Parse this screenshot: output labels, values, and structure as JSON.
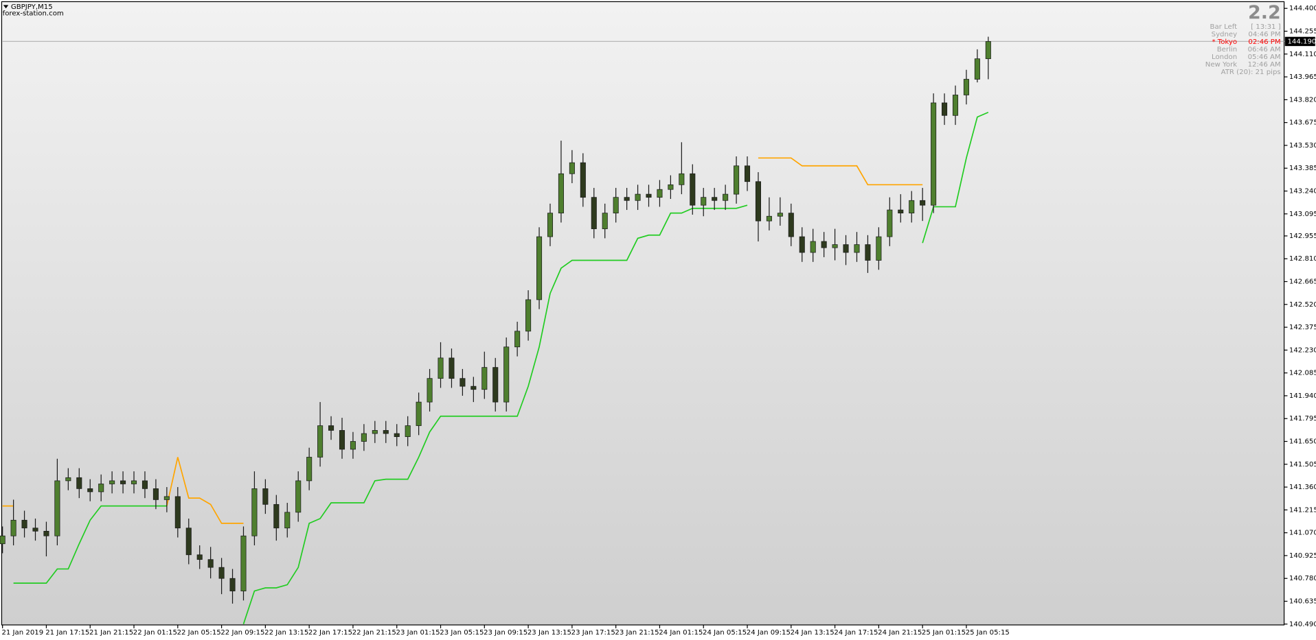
{
  "chart_data": {
    "type": "candlestick",
    "symbol": "GBPJPY,M15",
    "source": "forex-station.com",
    "up_color": "#4f7f2f",
    "down_color": "#2e3a1e",
    "wick_color": "#1a1a1a",
    "ylim": [
      140.49,
      144.4
    ],
    "xlim": [
      0,
      117
    ],
    "yticks": [
      {
        "value": 144.4,
        "label": "144.400"
      },
      {
        "value": 144.255,
        "label": "144.255"
      },
      {
        "value": 144.11,
        "label": "144.110"
      },
      {
        "value": 143.965,
        "label": "143.965"
      },
      {
        "value": 143.82,
        "label": "143.820"
      },
      {
        "value": 143.675,
        "label": "143.675"
      },
      {
        "value": 143.53,
        "label": "143.530"
      },
      {
        "value": 143.385,
        "label": "143.385"
      },
      {
        "value": 143.24,
        "label": "143.240"
      },
      {
        "value": 143.095,
        "label": "143.095"
      },
      {
        "value": 142.955,
        "label": "142.955"
      },
      {
        "value": 142.81,
        "label": "142.810"
      },
      {
        "value": 142.665,
        "label": "142.665"
      },
      {
        "value": 142.52,
        "label": "142.520"
      },
      {
        "value": 142.375,
        "label": "142.375"
      },
      {
        "value": 142.23,
        "label": "142.230"
      },
      {
        "value": 142.085,
        "label": "142.085"
      },
      {
        "value": 141.94,
        "label": "141.940"
      },
      {
        "value": 141.795,
        "label": "141.795"
      },
      {
        "value": 141.65,
        "label": "141.650"
      },
      {
        "value": 141.505,
        "label": "141.505"
      },
      {
        "value": 141.36,
        "label": "141.360"
      },
      {
        "value": 141.215,
        "label": "141.215"
      },
      {
        "value": 141.07,
        "label": "141.070"
      },
      {
        "value": 140.925,
        "label": "140.925"
      },
      {
        "value": 140.78,
        "label": "140.780"
      },
      {
        "value": 140.635,
        "label": "140.635"
      },
      {
        "value": 140.49,
        "label": "140.490"
      }
    ],
    "xticks": [
      {
        "value": 0,
        "label": "21 Jan 2019"
      },
      {
        "value": 4,
        "label": "21 Jan 17:15"
      },
      {
        "value": 8,
        "label": "21 Jan 21:15"
      },
      {
        "value": 12,
        "label": "22 Jan 01:15"
      },
      {
        "value": 16,
        "label": "22 Jan 05:15"
      },
      {
        "value": 20,
        "label": "22 Jan 09:15"
      },
      {
        "value": 24,
        "label": "22 Jan 13:15"
      },
      {
        "value": 28,
        "label": "22 Jan 17:15"
      },
      {
        "value": 32,
        "label": "22 Jan 21:15"
      },
      {
        "value": 36,
        "label": "23 Jan 01:15"
      },
      {
        "value": 40,
        "label": "23 Jan 05:15"
      },
      {
        "value": 44,
        "label": "23 Jan 09:15"
      },
      {
        "value": 48,
        "label": "23 Jan 13:15"
      },
      {
        "value": 52,
        "label": "23 Jan 17:15"
      },
      {
        "value": 56,
        "label": "23 Jan 21:15"
      },
      {
        "value": 60,
        "label": "24 Jan 01:15"
      },
      {
        "value": 64,
        "label": "24 Jan 05:15"
      },
      {
        "value": 68,
        "label": "24 Jan 09:15"
      },
      {
        "value": 72,
        "label": "24 Jan 13:15"
      },
      {
        "value": 76,
        "label": "24 Jan 17:15"
      },
      {
        "value": 80,
        "label": "24 Jan 21:15"
      },
      {
        "value": 84,
        "label": "25 Jan 01:15"
      },
      {
        "value": 88,
        "label": "25 Jan 05:15"
      }
    ],
    "current_price": {
      "value": 144.19,
      "label": "144.190"
    },
    "open": [
      141.0,
      141.05,
      141.15,
      141.1,
      141.08,
      141.05,
      141.4,
      141.42,
      141.35,
      141.33,
      141.38,
      141.4,
      141.38,
      141.4,
      141.35,
      141.28,
      141.3,
      141.1,
      140.93,
      140.9,
      140.85,
      140.78,
      140.7,
      141.05,
      141.35,
      141.25,
      141.1,
      141.2,
      141.4,
      141.55,
      141.75,
      141.72,
      141.6,
      141.65,
      141.7,
      141.72,
      141.7,
      141.68,
      141.75,
      141.9,
      142.05,
      142.18,
      142.05,
      142.0,
      141.98,
      142.12,
      141.9,
      142.25,
      142.35,
      142.55,
      142.95,
      143.1,
      143.35,
      143.42,
      143.2,
      143.0,
      143.1,
      143.2,
      143.18,
      143.22,
      143.2,
      143.25,
      143.28,
      143.35,
      143.15,
      143.2,
      143.18,
      143.22,
      143.4,
      143.3,
      143.05,
      143.08,
      143.1,
      142.95,
      142.85,
      142.92,
      142.88,
      142.9,
      142.85,
      142.9,
      142.8,
      142.95,
      143.12,
      143.1,
      143.18,
      143.15,
      143.8,
      143.72,
      143.85,
      143.95,
      144.08
    ],
    "high": [
      141.11,
      141.28,
      141.21,
      141.16,
      141.14,
      141.54,
      141.48,
      141.48,
      141.41,
      141.44,
      141.46,
      141.46,
      141.46,
      141.46,
      141.41,
      141.36,
      141.36,
      141.16,
      140.99,
      140.98,
      140.91,
      140.84,
      141.11,
      141.46,
      141.41,
      141.31,
      141.26,
      141.46,
      141.61,
      141.9,
      141.81,
      141.8,
      141.71,
      141.76,
      141.78,
      141.78,
      141.76,
      141.81,
      141.96,
      142.11,
      142.28,
      142.24,
      142.11,
      142.06,
      142.22,
      142.18,
      142.31,
      142.41,
      142.61,
      143.01,
      143.16,
      143.56,
      143.5,
      143.48,
      143.26,
      143.16,
      143.26,
      143.26,
      143.28,
      143.28,
      143.31,
      143.34,
      143.55,
      143.41,
      143.26,
      143.26,
      143.28,
      143.46,
      143.46,
      143.36,
      143.2,
      143.2,
      143.16,
      143.01,
      143.0,
      142.98,
      143.0,
      142.96,
      142.98,
      142.96,
      143.01,
      143.2,
      143.22,
      143.24,
      143.26,
      143.86,
      143.86,
      143.91,
      144.01,
      144.14,
      144.22
    ],
    "low": [
      140.94,
      140.99,
      141.04,
      141.02,
      140.92,
      140.99,
      141.34,
      141.29,
      141.27,
      141.27,
      141.32,
      141.32,
      141.32,
      141.29,
      141.22,
      141.2,
      141.04,
      140.87,
      140.84,
      140.78,
      140.68,
      140.62,
      140.64,
      140.99,
      141.19,
      141.02,
      141.04,
      141.14,
      141.34,
      141.49,
      141.66,
      141.54,
      141.54,
      141.59,
      141.64,
      141.64,
      141.62,
      141.62,
      141.69,
      141.84,
      141.99,
      141.99,
      141.94,
      141.9,
      141.92,
      141.84,
      141.84,
      142.19,
      142.29,
      142.49,
      142.89,
      143.04,
      143.29,
      143.14,
      142.94,
      142.94,
      143.04,
      143.12,
      143.12,
      143.14,
      143.14,
      143.19,
      143.22,
      143.09,
      143.08,
      143.12,
      143.12,
      143.16,
      143.24,
      142.92,
      142.99,
      143.02,
      142.89,
      142.79,
      142.79,
      142.82,
      142.8,
      142.77,
      142.79,
      142.72,
      142.74,
      142.89,
      143.04,
      143.04,
      143.05,
      143.1,
      143.66,
      143.66,
      143.79,
      143.93,
      143.95
    ],
    "close": [
      141.05,
      141.15,
      141.1,
      141.08,
      141.05,
      141.4,
      141.42,
      141.35,
      141.33,
      141.38,
      141.4,
      141.38,
      141.4,
      141.35,
      141.28,
      141.3,
      141.1,
      140.93,
      140.9,
      140.85,
      140.78,
      140.7,
      141.05,
      141.35,
      141.25,
      141.1,
      141.2,
      141.4,
      141.55,
      141.75,
      141.72,
      141.6,
      141.65,
      141.7,
      141.72,
      141.7,
      141.68,
      141.75,
      141.9,
      142.05,
      142.18,
      142.05,
      142.0,
      141.98,
      142.12,
      141.9,
      142.25,
      142.35,
      142.55,
      142.95,
      143.1,
      143.35,
      143.42,
      143.2,
      143.0,
      143.1,
      143.2,
      143.18,
      143.22,
      143.2,
      143.25,
      143.28,
      143.35,
      143.15,
      143.2,
      143.18,
      143.22,
      143.4,
      143.3,
      143.05,
      143.08,
      143.1,
      142.95,
      142.85,
      142.92,
      142.88,
      142.9,
      142.85,
      142.9,
      142.8,
      142.95,
      143.12,
      143.1,
      143.18,
      143.15,
      143.8,
      143.72,
      143.85,
      143.95,
      144.08,
      144.19
    ],
    "lines": [
      {
        "color": "#ffa500",
        "values": [
          141.24,
          141.24,
          null,
          null,
          null,
          null,
          null,
          null,
          null,
          null,
          null,
          null,
          null,
          null,
          null,
          141.24,
          141.55,
          141.29,
          141.29,
          141.25,
          141.13,
          141.13,
          141.13,
          null,
          null,
          null,
          null,
          null,
          null,
          null,
          null,
          null,
          null,
          null,
          null,
          null,
          null,
          null,
          null,
          null,
          null,
          null,
          null,
          null,
          null,
          null,
          null,
          null,
          null,
          null,
          null,
          null,
          null,
          null,
          null,
          null,
          null,
          null,
          null,
          null,
          null,
          null,
          null,
          null,
          null,
          null,
          null,
          null,
          null,
          143.45,
          143.45,
          143.45,
          143.45,
          143.4,
          143.4,
          143.4,
          143.4,
          143.4,
          143.4,
          143.28,
          143.28,
          143.28,
          143.28,
          143.28,
          143.28,
          null,
          null,
          null,
          null,
          null,
          null
        ]
      },
      {
        "color": "#22cc22",
        "values": [
          null,
          140.75,
          140.75,
          140.75,
          140.75,
          140.84,
          140.84,
          141.0,
          141.15,
          141.24,
          141.24,
          141.24,
          141.24,
          141.24,
          141.24,
          141.24,
          null,
          null,
          null,
          null,
          null,
          null,
          140.49,
          140.7,
          140.72,
          140.72,
          140.74,
          140.85,
          141.13,
          141.16,
          141.26,
          141.26,
          141.26,
          141.26,
          141.4,
          141.41,
          141.41,
          141.41,
          141.55,
          141.71,
          141.81,
          141.81,
          141.81,
          141.81,
          141.81,
          141.81,
          141.81,
          141.81,
          142.0,
          142.25,
          142.59,
          142.75,
          142.8,
          142.8,
          142.8,
          142.8,
          142.8,
          142.8,
          142.94,
          142.96,
          142.96,
          143.1,
          143.1,
          143.13,
          143.13,
          143.13,
          143.13,
          143.13,
          143.15,
          null,
          null,
          null,
          null,
          null,
          null,
          null,
          null,
          null,
          null,
          null,
          null,
          null,
          null,
          null,
          142.91,
          143.14,
          143.14,
          143.14,
          143.45,
          143.71,
          143.74
        ]
      }
    ],
    "panel": {
      "spread": "2.2",
      "rows": [
        {
          "label": "Bar Left",
          "value": "[ 13:31 ]",
          "color": "#a0a0a0"
        },
        {
          "label": "Sydney",
          "value": "04:46 PM",
          "color": "#a0a0a0"
        },
        {
          "label": "* Tokyo",
          "value": "02:46 PM",
          "color": "#ff0000"
        },
        {
          "label": "Berlin",
          "value": "06:46 AM",
          "color": "#a0a0a0"
        },
        {
          "label": "London",
          "value": "05:46 AM",
          "color": "#a0a0a0"
        },
        {
          "label": "New York",
          "value": "12:46 AM",
          "color": "#a0a0a0"
        }
      ],
      "atr": "ATR (20): 21 pips"
    }
  }
}
